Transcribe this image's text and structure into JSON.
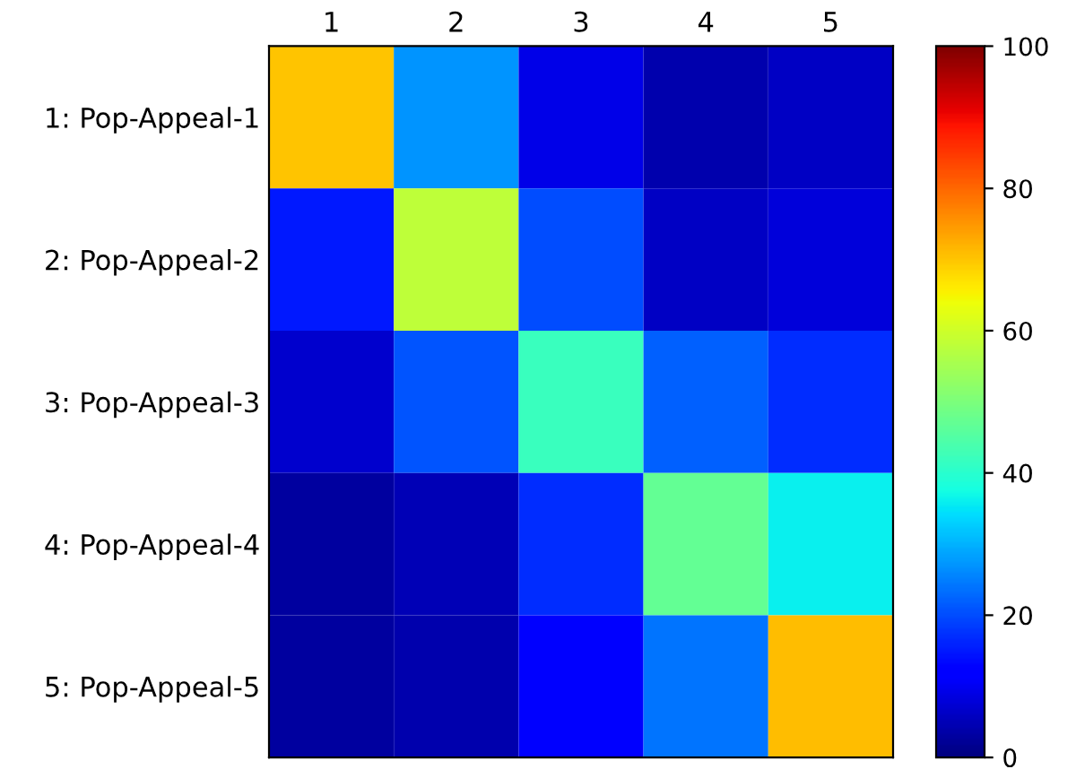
{
  "chart_data": {
    "type": "heatmap",
    "categories": [
      "1",
      "2",
      "3",
      "4",
      "5"
    ],
    "y_categories": [
      "1: Pop-Appeal-1",
      "2: Pop-Appeal-2",
      "3: Pop-Appeal-3",
      "4: Pop-Appeal-4",
      "5: Pop-Appeal-5"
    ],
    "cells": [
      [
        70,
        27,
        9,
        4,
        6
      ],
      [
        15,
        58,
        20,
        6,
        8
      ],
      [
        7,
        21,
        42,
        22,
        17
      ],
      [
        3,
        5,
        17,
        47,
        36
      ],
      [
        3,
        4,
        11,
        24,
        71
      ]
    ],
    "clim": [
      0,
      100
    ],
    "cticks": [
      0,
      20,
      40,
      60,
      80,
      100
    ]
  }
}
